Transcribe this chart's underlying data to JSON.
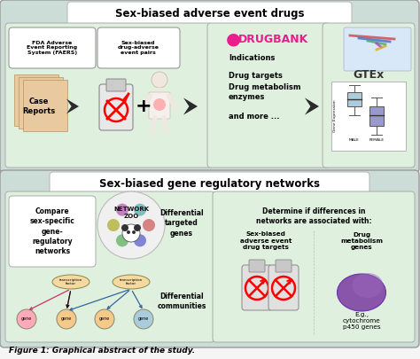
{
  "fig_width": 4.74,
  "fig_height": 4.05,
  "dpi": 100,
  "bg_color": "#f5f5f5",
  "top_box_facecolor": "#ccddd8",
  "bottom_box_facecolor": "#ccddd8",
  "top_inner_facecolor": "#dff0df",
  "bottom_inner_facecolor": "#dff0df",
  "white_box_color": "#ffffff",
  "top_title": "Sex-biased adverse event drugs",
  "bottom_title": "Sex-biased gene regulatory networks",
  "caption": "Figure 1: Graphical abstract of the study.",
  "faers_label": "FDA Adverse\nEvent Reporting\nSystem (FAERS)",
  "sexbias_label": "Sex-biased\ndrug-adverse\nevent pairs",
  "drugbank_items": [
    "Indications",
    "Drug targets",
    "Drug metabolism\nenzymes",
    "and more ..."
  ],
  "case_reports_label": "Case\nReports",
  "compare_label": "Compare\nsex-specific\ngene-\nregulatory\nnetworks",
  "diff_targeted": "Differential\ntargeted\ngenes",
  "diff_communities": "Differential\ncommunities",
  "determine_label": "Determine if differences in\nnetworks are associated with:",
  "sex_biased_targets": "Sex-biased\nadverse event\ndrug targets",
  "drug_metabolism_genes": "Drug\nmetabolism\ngenes",
  "eg_label": "E.g.,\ncytochrome\np450 genes",
  "male_label": "MALE",
  "female_label": "FEMALE",
  "tf_label": "transcription\nfactor",
  "gene_label": "gene",
  "network_zoo_label": "NETWORK\nZOO",
  "pink_color": "#e91e8c",
  "drugbank_pink": "#e91e8c",
  "arrow_dark": "#2a2a2a",
  "gtex_color": "#333333",
  "male_box_color": "#aaccdd",
  "female_box_color": "#9999cc",
  "gene_pink": "#ffaabb",
  "gene_peach": "#f5c98a",
  "gene_blue": "#aaccdd",
  "tf_fill": "#f5d9a0",
  "title_fontsize": 8.5,
  "label_fontsize": 5.5,
  "small_fontsize": 4.5,
  "caption_fontsize": 6.5
}
